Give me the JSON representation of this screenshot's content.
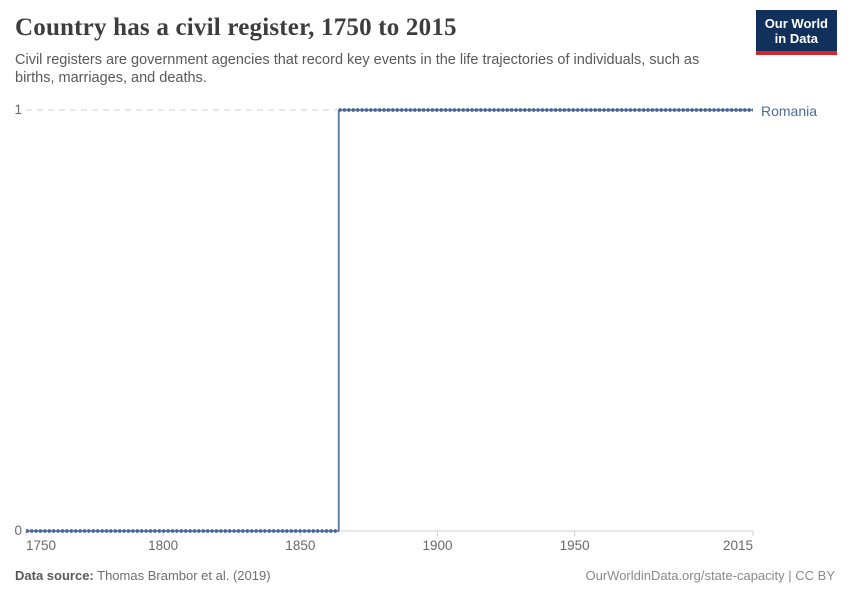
{
  "header": {
    "title": "Country has a civil register, 1750 to 2015",
    "subtitle": "Civil registers are government agencies that record key events in the life trajectories of individuals, such as births, marriages, and deaths."
  },
  "logo": {
    "line1": "Our World",
    "line2": "in Data",
    "bg_color": "#12305c",
    "accent_color": "#d2262e"
  },
  "chart_data": {
    "type": "line",
    "step": true,
    "title": "Country has a civil register, 1750 to 2015",
    "xlabel": "",
    "ylabel": "",
    "xlim": [
      1750,
      2015
    ],
    "ylim": [
      0,
      1
    ],
    "x_ticks": [
      1750,
      1800,
      1850,
      1900,
      1950,
      2015
    ],
    "y_ticks": [
      0,
      1
    ],
    "grid": "dashed horizontal gridline at y=1, solid axis at y=0",
    "legend_position": "right-of-line-end",
    "series": [
      {
        "name": "Romania",
        "color": "#4c6a9c",
        "segments": [
          {
            "from": 1750,
            "to": 1863,
            "value": 0
          },
          {
            "from": 1864,
            "to": 2015,
            "value": 1
          }
        ]
      }
    ]
  },
  "footer": {
    "source_label": "Data source:",
    "source_text": "Thomas Brambor et al. (2019)",
    "credit": "OurWorldinData.org/state-capacity | CC BY"
  }
}
